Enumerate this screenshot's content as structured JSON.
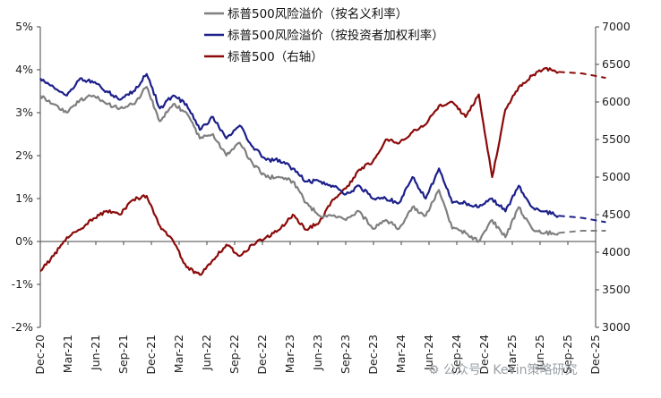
{
  "chart_data": {
    "type": "line",
    "y_left": {
      "ticks": [
        "5%",
        "4%",
        "3%",
        "2%",
        "1%",
        "0%",
        "-1%",
        "-2%"
      ],
      "min": -2,
      "max": 5,
      "unit": "%"
    },
    "y_right": {
      "ticks": [
        "7000",
        "6500",
        "6000",
        "5500",
        "5000",
        "4500",
        "4000",
        "3500",
        "3000"
      ],
      "min": 3000,
      "max": 7000
    },
    "x_ticks": [
      "Dec-20",
      "Mar-21",
      "Jun-21",
      "Sep-21",
      "Dec-21",
      "Mar-22",
      "Jun-22",
      "Sep-22",
      "Dec-22",
      "Mar-23",
      "Jun-23",
      "Sep-23",
      "Dec-23",
      "Mar-24",
      "Jun-24",
      "Sep-24",
      "Dec-24",
      "Mar-25",
      "Jun-25",
      "Sep-25",
      "Dec-25"
    ],
    "forecast_start": "Aug-25",
    "series": [
      {
        "name": "标普500风险溢价（按名义利率）",
        "axis": "left",
        "color": "#7f7f7f",
        "values": [
          3.4,
          3.2,
          3.0,
          3.3,
          3.4,
          3.2,
          3.1,
          3.2,
          3.6,
          2.8,
          3.2,
          3.0,
          2.4,
          2.5,
          2.0,
          2.3,
          1.8,
          1.5,
          1.5,
          1.4,
          0.9,
          0.6,
          0.6,
          0.5,
          0.7,
          0.3,
          0.5,
          0.3,
          0.8,
          0.6,
          1.2,
          0.3,
          0.2,
          0.0,
          0.5,
          0.1,
          0.8,
          0.3,
          0.2,
          0.2
        ],
        "forecast": [
          0.25,
          0.25
        ]
      },
      {
        "name": "标普500风险溢价（按投资者加权利率）",
        "axis": "left",
        "color": "#1c1f8a",
        "values": [
          3.8,
          3.6,
          3.4,
          3.8,
          3.7,
          3.5,
          3.3,
          3.5,
          3.9,
          3.1,
          3.4,
          3.2,
          2.6,
          2.9,
          2.4,
          2.7,
          2.2,
          1.9,
          1.9,
          1.7,
          1.4,
          1.4,
          1.3,
          1.1,
          1.3,
          1.0,
          1.0,
          0.9,
          1.5,
          1.0,
          1.7,
          0.9,
          0.9,
          0.8,
          1.0,
          0.7,
          1.3,
          0.8,
          0.7,
          0.6
        ],
        "forecast": [
          0.55,
          0.45
        ]
      },
      {
        "name": "标普500（右轴）",
        "axis": "right",
        "color": "#8b0a0a",
        "values": [
          3750,
          3950,
          4200,
          4300,
          4450,
          4550,
          4500,
          4700,
          4750,
          4350,
          4150,
          3800,
          3700,
          3900,
          4100,
          3950,
          4100,
          4200,
          4300,
          4500,
          4300,
          4400,
          4700,
          4850,
          5100,
          5200,
          5500,
          5450,
          5600,
          5700,
          5950,
          6000,
          5800,
          6100,
          5000,
          5900,
          6200,
          6350,
          6450,
          6400
        ],
        "forecast": [
          6380,
          6320
        ]
      }
    ]
  }
}
